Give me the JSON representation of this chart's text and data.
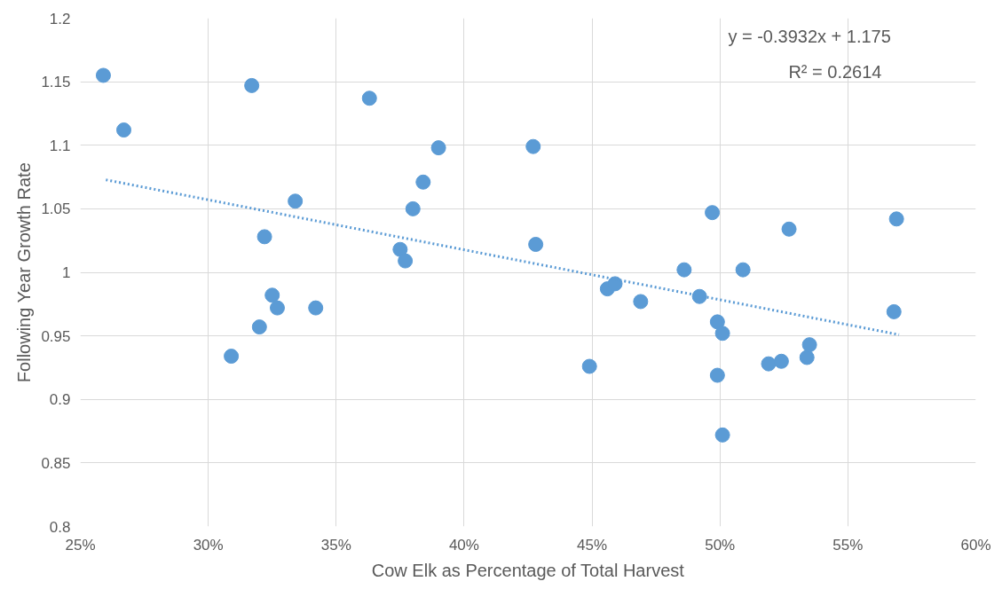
{
  "chart_data": {
    "type": "scatter",
    "xlabel": "Cow Elk as Percentage of Total Harvest",
    "ylabel": "Following Year Growth Rate",
    "xlim": [
      0.25,
      0.6
    ],
    "ylim": [
      0.8,
      1.2
    ],
    "xticks": [
      {
        "value": 0.25,
        "label": "25%"
      },
      {
        "value": 0.3,
        "label": "30%"
      },
      {
        "value": 0.35,
        "label": "35%"
      },
      {
        "value": 0.4,
        "label": "40%"
      },
      {
        "value": 0.45,
        "label": "45%"
      },
      {
        "value": 0.5,
        "label": "50%"
      },
      {
        "value": 0.55,
        "label": "55%"
      },
      {
        "value": 0.6,
        "label": "60%"
      }
    ],
    "yticks": [
      0.8,
      0.85,
      0.9,
      0.95,
      1,
      1.05,
      1.1,
      1.15,
      1.2
    ],
    "grid": true,
    "series": [
      {
        "marker": "circle",
        "color": "#5b9bd5",
        "x": [
          0.259,
          0.267,
          0.317,
          0.309,
          0.322,
          0.32,
          0.325,
          0.327,
          0.334,
          0.342,
          0.363,
          0.375,
          0.377,
          0.38,
          0.384,
          0.39,
          0.427,
          0.428,
          0.449,
          0.456,
          0.459,
          0.469,
          0.486,
          0.492,
          0.497,
          0.499,
          0.499,
          0.501,
          0.501,
          0.509,
          0.519,
          0.524,
          0.527,
          0.534,
          0.535,
          0.569,
          0.568
        ],
        "values": [
          1.155,
          1.112,
          1.147,
          0.934,
          1.028,
          0.957,
          0.982,
          0.972,
          1.056,
          0.972,
          1.137,
          1.018,
          1.009,
          1.05,
          1.071,
          1.098,
          1.099,
          1.022,
          0.926,
          0.987,
          0.991,
          0.977,
          1.002,
          0.981,
          1.047,
          0.961,
          0.919,
          0.952,
          0.872,
          1.002,
          0.928,
          0.93,
          1.034,
          0.933,
          0.943,
          1.042,
          0.969
        ]
      },
      {
        "type": "line",
        "line_style": "dotted",
        "color": "#5b9bd5",
        "x": [
          0.26,
          0.57
        ],
        "values": [
          1.0728,
          0.9509
        ]
      }
    ],
    "annotations": [
      "y = -0.3932x + 1.175",
      "R² = 0.2614"
    ]
  }
}
